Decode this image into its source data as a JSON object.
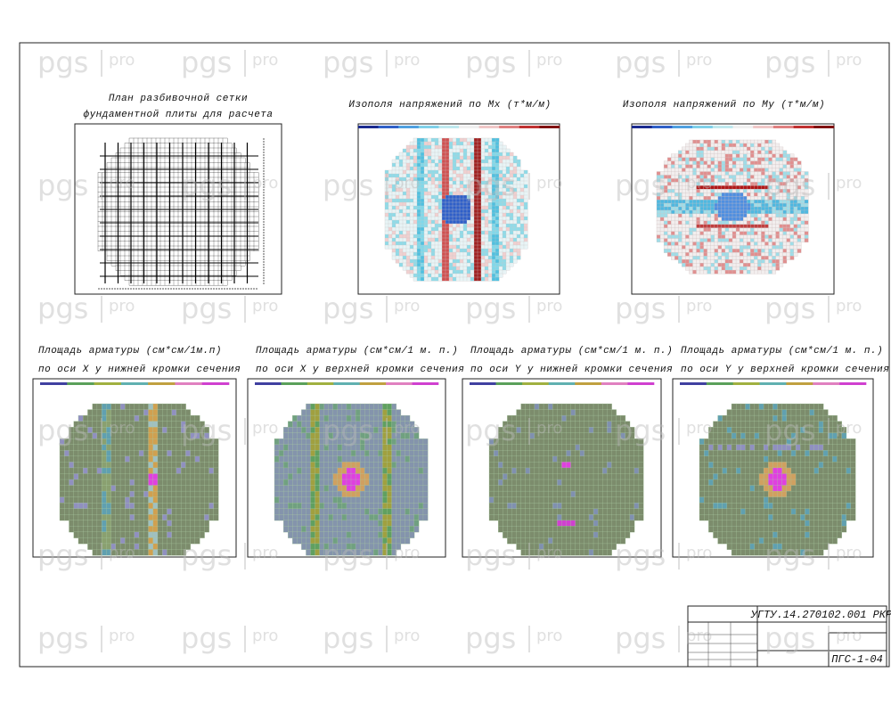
{
  "watermark": {
    "brand": "pgs",
    "suffix": "pro"
  },
  "top_panels": [
    {
      "title": [
        "План разбивочной сетки",
        "фундаментной плиты для расчета"
      ]
    },
    {
      "title": [
        "Изополя напряжений по Мх (т*м/м)"
      ]
    },
    {
      "title": [
        "Изополя напряжений по Му (т*м/м)"
      ]
    }
  ],
  "bottom_panels": [
    {
      "title": [
        "Площадь арматуры (см*см/1м.п)",
        "по оси Х у нижней кромки сечения"
      ]
    },
    {
      "title": [
        "Площадь арматуры (см*см/1 м. п.)",
        "по оси Х у верхней кромки сечения"
      ]
    },
    {
      "title": [
        "Площадь арматуры (см*см/1 м. п.)",
        "по оси Y у нижней кромки сечения"
      ]
    },
    {
      "title": [
        "Площадь арматуры (см*см/1 м. п.)",
        "по оси Y у верхней кромки сечения"
      ]
    }
  ],
  "title_block": {
    "code": "УГТУ.14.270102.001 РКР",
    "sheet": "ПГС-1-04"
  }
}
